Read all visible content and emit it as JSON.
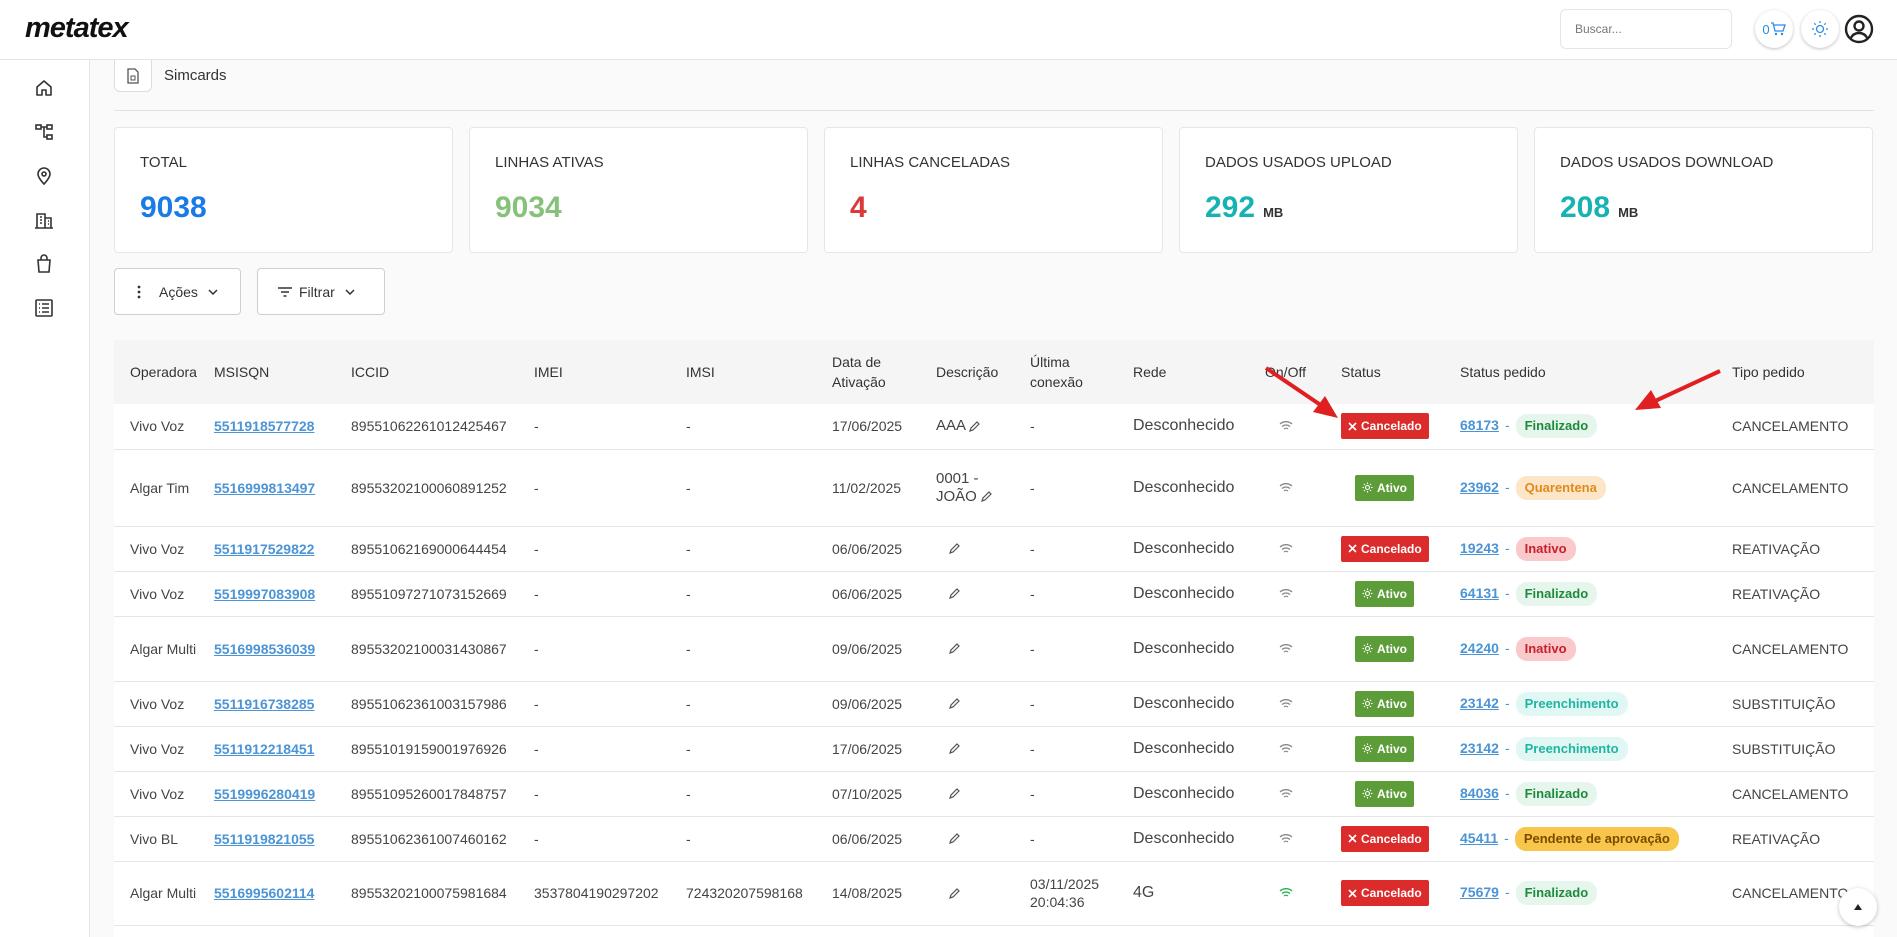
{
  "app": {
    "logo": "metatex"
  },
  "header": {
    "search_placeholder": "Buscar...",
    "cart_count": "0",
    "icons": [
      "cart-icon",
      "sun-icon",
      "user-circle-icon"
    ]
  },
  "sidebar": {
    "items": [
      {
        "icon": "home-icon"
      },
      {
        "icon": "hierarchy-icon"
      },
      {
        "icon": "location-pin-icon"
      },
      {
        "icon": "building-icon"
      },
      {
        "icon": "shopping-bag-icon"
      },
      {
        "icon": "list-icon"
      }
    ]
  },
  "breadcrumb": {
    "icon": "simcard-icon",
    "label": "Simcards"
  },
  "cards": [
    {
      "label": "TOTAL",
      "value": "9038",
      "unit": "",
      "color": "#1a7be6"
    },
    {
      "label": "LINHAS ATIVAS",
      "value": "9034",
      "unit": "",
      "color": "#86c27a"
    },
    {
      "label": "LINHAS CANCELADAS",
      "value": "4",
      "unit": "",
      "color": "#d93a3a"
    },
    {
      "label": "DADOS USADOS UPLOAD",
      "value": "292",
      "unit": "MB",
      "color": "#17b3b3"
    },
    {
      "label": "DADOS USADOS DOWNLOAD",
      "value": "208",
      "unit": "MB",
      "color": "#17b3b3"
    }
  ],
  "toolbar": {
    "actions_label": "Ações",
    "filter_label": "Filtrar"
  },
  "table": {
    "columns": [
      "Operadora",
      "MSISQN",
      "ICCID",
      "IMEI",
      "IMSI",
      "Data de Ativação",
      "Descrição",
      "Última conexão",
      "Rede",
      "On/Off",
      "Status",
      "Status pedido",
      "Tipo pedido"
    ],
    "rows": [
      {
        "operadora": "Vivo Voz",
        "msisdn": "5511918577728",
        "iccid": "89551062261012425467",
        "imei": "-",
        "imsi": "-",
        "data": "17/06/2025",
        "descricao": "AAA",
        "ultima": "-",
        "rede": "Desconhecido",
        "online": false,
        "status": "Cancelado",
        "pedido": "68173",
        "status_pedido": "Finalizado",
        "tipo": "CANCELAMENTO"
      },
      {
        "operadora": "Algar Tim",
        "msisdn": "5516999813497",
        "iccid": "89553202100060891252",
        "imei": "-",
        "imsi": "-",
        "data": "11/02/2025",
        "descricao": "0001 - JOÃO",
        "ultima": "-",
        "rede": "Desconhecido",
        "online": false,
        "status": "Ativo",
        "pedido": "23962",
        "status_pedido": "Quarentena",
        "tipo": "CANCELAMENTO"
      },
      {
        "operadora": "Vivo Voz",
        "msisdn": "5511917529822",
        "iccid": "89551062169000644454",
        "imei": "-",
        "imsi": "-",
        "data": "06/06/2025",
        "descricao": "",
        "ultima": "-",
        "rede": "Desconhecido",
        "online": false,
        "status": "Cancelado",
        "pedido": "19243",
        "status_pedido": "Inativo",
        "tipo": "REATIVAÇÃO"
      },
      {
        "operadora": "Vivo Voz",
        "msisdn": "5519997083908",
        "iccid": "89551097271073152669",
        "imei": "-",
        "imsi": "-",
        "data": "06/06/2025",
        "descricao": "",
        "ultima": "-",
        "rede": "Desconhecido",
        "online": false,
        "status": "Ativo",
        "pedido": "64131",
        "status_pedido": "Finalizado",
        "tipo": "REATIVAÇÃO"
      },
      {
        "operadora": "Algar Multi",
        "msisdn": "5516998536039",
        "iccid": "89553202100031430867",
        "imei": "-",
        "imsi": "-",
        "data": "09/06/2025",
        "descricao": "",
        "ultima": "-",
        "rede": "Desconhecido",
        "online": false,
        "status": "Ativo",
        "pedido": "24240",
        "status_pedido": "Inativo",
        "tipo": "CANCELAMENTO"
      },
      {
        "operadora": "Vivo Voz",
        "msisdn": "5511916738285",
        "iccid": "89551062361003157986",
        "imei": "-",
        "imsi": "-",
        "data": "09/06/2025",
        "descricao": "",
        "ultima": "-",
        "rede": "Desconhecido",
        "online": false,
        "status": "Ativo",
        "pedido": "23142",
        "status_pedido": "Preenchimento",
        "tipo": "SUBSTITUIÇÃO"
      },
      {
        "operadora": "Vivo Voz",
        "msisdn": "5511912218451",
        "iccid": "89551019159001976926",
        "imei": "-",
        "imsi": "-",
        "data": "17/06/2025",
        "descricao": "",
        "ultima": "-",
        "rede": "Desconhecido",
        "online": false,
        "status": "Ativo",
        "pedido": "23142",
        "status_pedido": "Preenchimento",
        "tipo": "SUBSTITUIÇÃO"
      },
      {
        "operadora": "Vivo Voz",
        "msisdn": "5519996280419",
        "iccid": "89551095260017848757",
        "imei": "-",
        "imsi": "-",
        "data": "07/10/2025",
        "descricao": "",
        "ultima": "-",
        "rede": "Desconhecido",
        "online": false,
        "status": "Ativo",
        "pedido": "84036",
        "status_pedido": "Finalizado",
        "tipo": "CANCELAMENTO"
      },
      {
        "operadora": "Vivo BL",
        "msisdn": "5511919821055",
        "iccid": "89551062361007460162",
        "imei": "-",
        "imsi": "-",
        "data": "06/06/2025",
        "descricao": "",
        "ultima": "-",
        "rede": "Desconhecido",
        "online": false,
        "status": "Cancelado",
        "pedido": "45411",
        "status_pedido": "Pendente de aprovação",
        "tipo": "REATIVAÇÃO"
      },
      {
        "operadora": "Algar Multi",
        "msisdn": "5516995602114",
        "iccid": "89553202100075981684",
        "imei": "3537804190297202",
        "imsi": "724320207598168",
        "data": "14/08/2025",
        "descricao": "",
        "ultima": "03/11/2025 20:04:36",
        "rede": "4G",
        "online": true,
        "status": "Cancelado",
        "pedido": "75679",
        "status_pedido": "Finalizado",
        "tipo": "CANCELAMENTO"
      }
    ]
  },
  "status_colors": {
    "Cancelado": "#dc2b2b",
    "Ativo": "#5c9c39"
  },
  "pill_styles": {
    "Finalizado": {
      "bg": "#e6f6ec",
      "fg": "#1e8a3c"
    },
    "Quarentena": {
      "bg": "#fde6c8",
      "fg": "#e08a1e"
    },
    "Inativo": {
      "bg": "#f9c9cc",
      "fg": "#c8202c"
    },
    "Preenchimento": {
      "bg": "#e0f7f3",
      "fg": "#1fb5a3"
    },
    "Pendente de aprovação": {
      "bg": "#f7c64a",
      "fg": "#7a4a00"
    }
  },
  "annotation_color": "#e02020"
}
